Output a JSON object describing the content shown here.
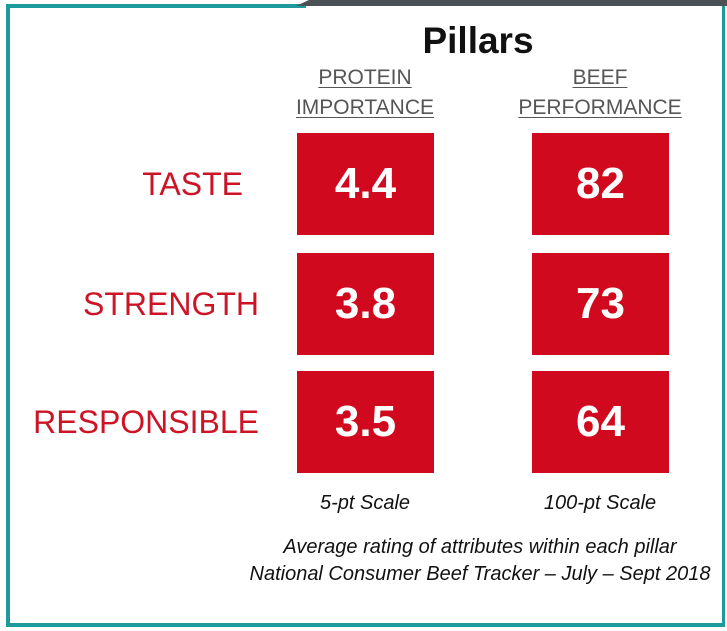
{
  "title": "Pillars",
  "columns": [
    {
      "header": [
        "PROTEIN",
        "IMPORTANCE"
      ],
      "scale": "5-pt Scale"
    },
    {
      "header": [
        "BEEF",
        "PERFORMANCE"
      ],
      "scale": "100-pt Scale"
    }
  ],
  "rows": [
    {
      "label": "TASTE",
      "values": [
        4.4,
        82
      ]
    },
    {
      "label": "STRENGTH",
      "values": [
        3.8,
        73
      ]
    },
    {
      "label": "RESPONSIBLE",
      "values": [
        3.5,
        64
      ]
    }
  ],
  "notes": [
    "Average rating of attributes within each pillar",
    "National Consumer Beef Tracker – July – Sept 2018"
  ]
}
